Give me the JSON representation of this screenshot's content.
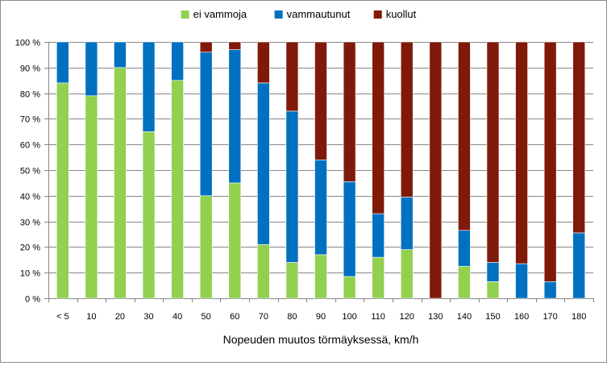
{
  "chart_data": {
    "type": "bar",
    "stacked": true,
    "percent": true,
    "xlabel": "Nopeuden muutos törmäyksessä, km/h",
    "ylabel": "",
    "ylim": [
      0,
      100
    ],
    "y_ticks": [
      "0 %",
      "10 %",
      "20 %",
      "30 %",
      "40 %",
      "50 %",
      "60 %",
      "70 %",
      "80 %",
      "90 %",
      "100 %"
    ],
    "grid": true,
    "legend_position": "top",
    "categories": [
      "< 5",
      "10",
      "20",
      "30",
      "40",
      "50",
      "60",
      "70",
      "80",
      "90",
      "100",
      "110",
      "120",
      "130",
      "140",
      "150",
      "160",
      "170",
      "180"
    ],
    "series": [
      {
        "name": "ei vammoja",
        "color": "#92d050",
        "values": [
          84,
          79,
          90,
          65,
          85,
          40,
          45,
          21,
          14,
          17,
          8.5,
          16,
          19,
          0,
          12.5,
          6.5,
          0,
          0,
          0
        ]
      },
      {
        "name": "vammautunut",
        "color": "#0070c0",
        "values": [
          16,
          21,
          10,
          35,
          15,
          56,
          52,
          63,
          59,
          37,
          37,
          17,
          20.5,
          0,
          14,
          7.5,
          13.5,
          6.5,
          25.5
        ]
      },
      {
        "name": "kuollut",
        "color": "#7f1a0b",
        "values": [
          0,
          0,
          0,
          0,
          0,
          4,
          3,
          16,
          27,
          46,
          54.5,
          67,
          60.5,
          100,
          73.5,
          86,
          86.5,
          93.5,
          74.5
        ]
      }
    ]
  }
}
